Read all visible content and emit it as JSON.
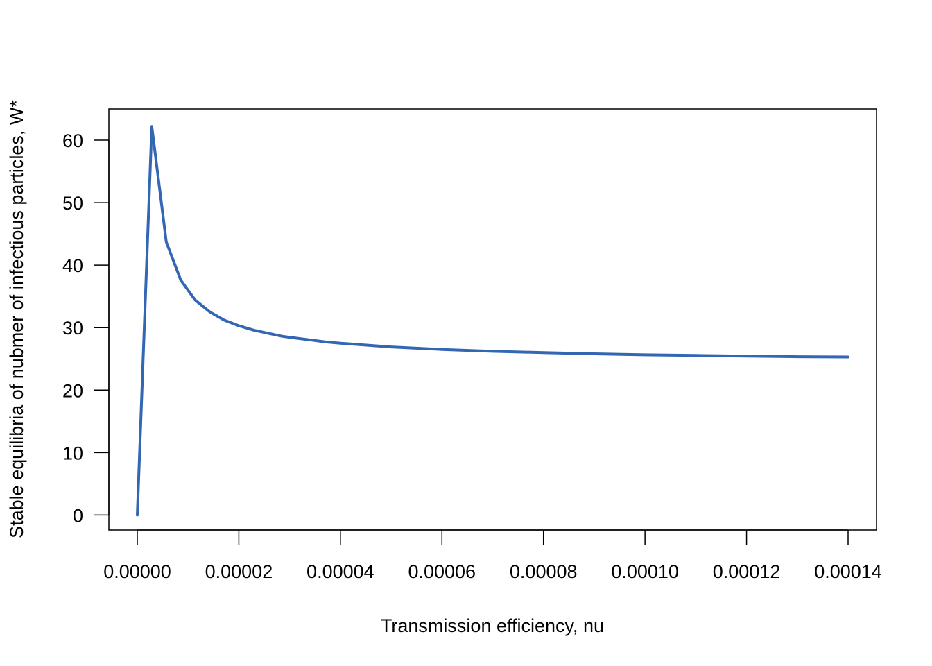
{
  "chart_data": {
    "type": "line",
    "title": "",
    "xlabel": "Transmission efficiency, nu",
    "ylabel": "Stable equilibria of nubmer of infectious particles, W*",
    "xlim": [
      -5.6e-06,
      0.0001456
    ],
    "ylim": [
      -2.4,
      65
    ],
    "x_ticks": [
      0,
      2e-05,
      4e-05,
      6e-05,
      8e-05,
      0.0001,
      0.00012,
      0.00014
    ],
    "x_tick_labels": [
      "0.00000",
      "0.00002",
      "0.00004",
      "0.00006",
      "0.00008",
      "0.00010",
      "0.00012",
      "0.00014"
    ],
    "y_ticks": [
      0,
      10,
      20,
      30,
      40,
      50,
      60
    ],
    "y_tick_labels": [
      "0",
      "10",
      "20",
      "30",
      "40",
      "50",
      "60"
    ],
    "grid": false,
    "line_color": "#3366b3",
    "series": [
      {
        "x": [
          0,
          2.86e-06,
          5.71e-06,
          8.57e-06,
          1.14e-05,
          1.43e-05,
          1.71e-05,
          2e-05,
          2.29e-05,
          2.57e-05,
          2.86e-05,
          3.14e-05,
          3.43e-05,
          3.71e-05,
          4e-05,
          5e-05,
          6e-05,
          7e-05,
          8e-05,
          9e-05,
          0.0001,
          0.00011,
          0.00012,
          0.00013,
          0.00014
        ],
        "y": [
          0,
          62.2,
          43.7,
          37.6,
          34.4,
          32.5,
          31.2,
          30.3,
          29.6,
          29.1,
          28.6,
          28.3,
          28.0,
          27.7,
          27.5,
          26.9,
          26.5,
          26.2,
          26.0,
          25.8,
          25.65,
          25.55,
          25.45,
          25.35,
          25.3
        ]
      }
    ]
  }
}
